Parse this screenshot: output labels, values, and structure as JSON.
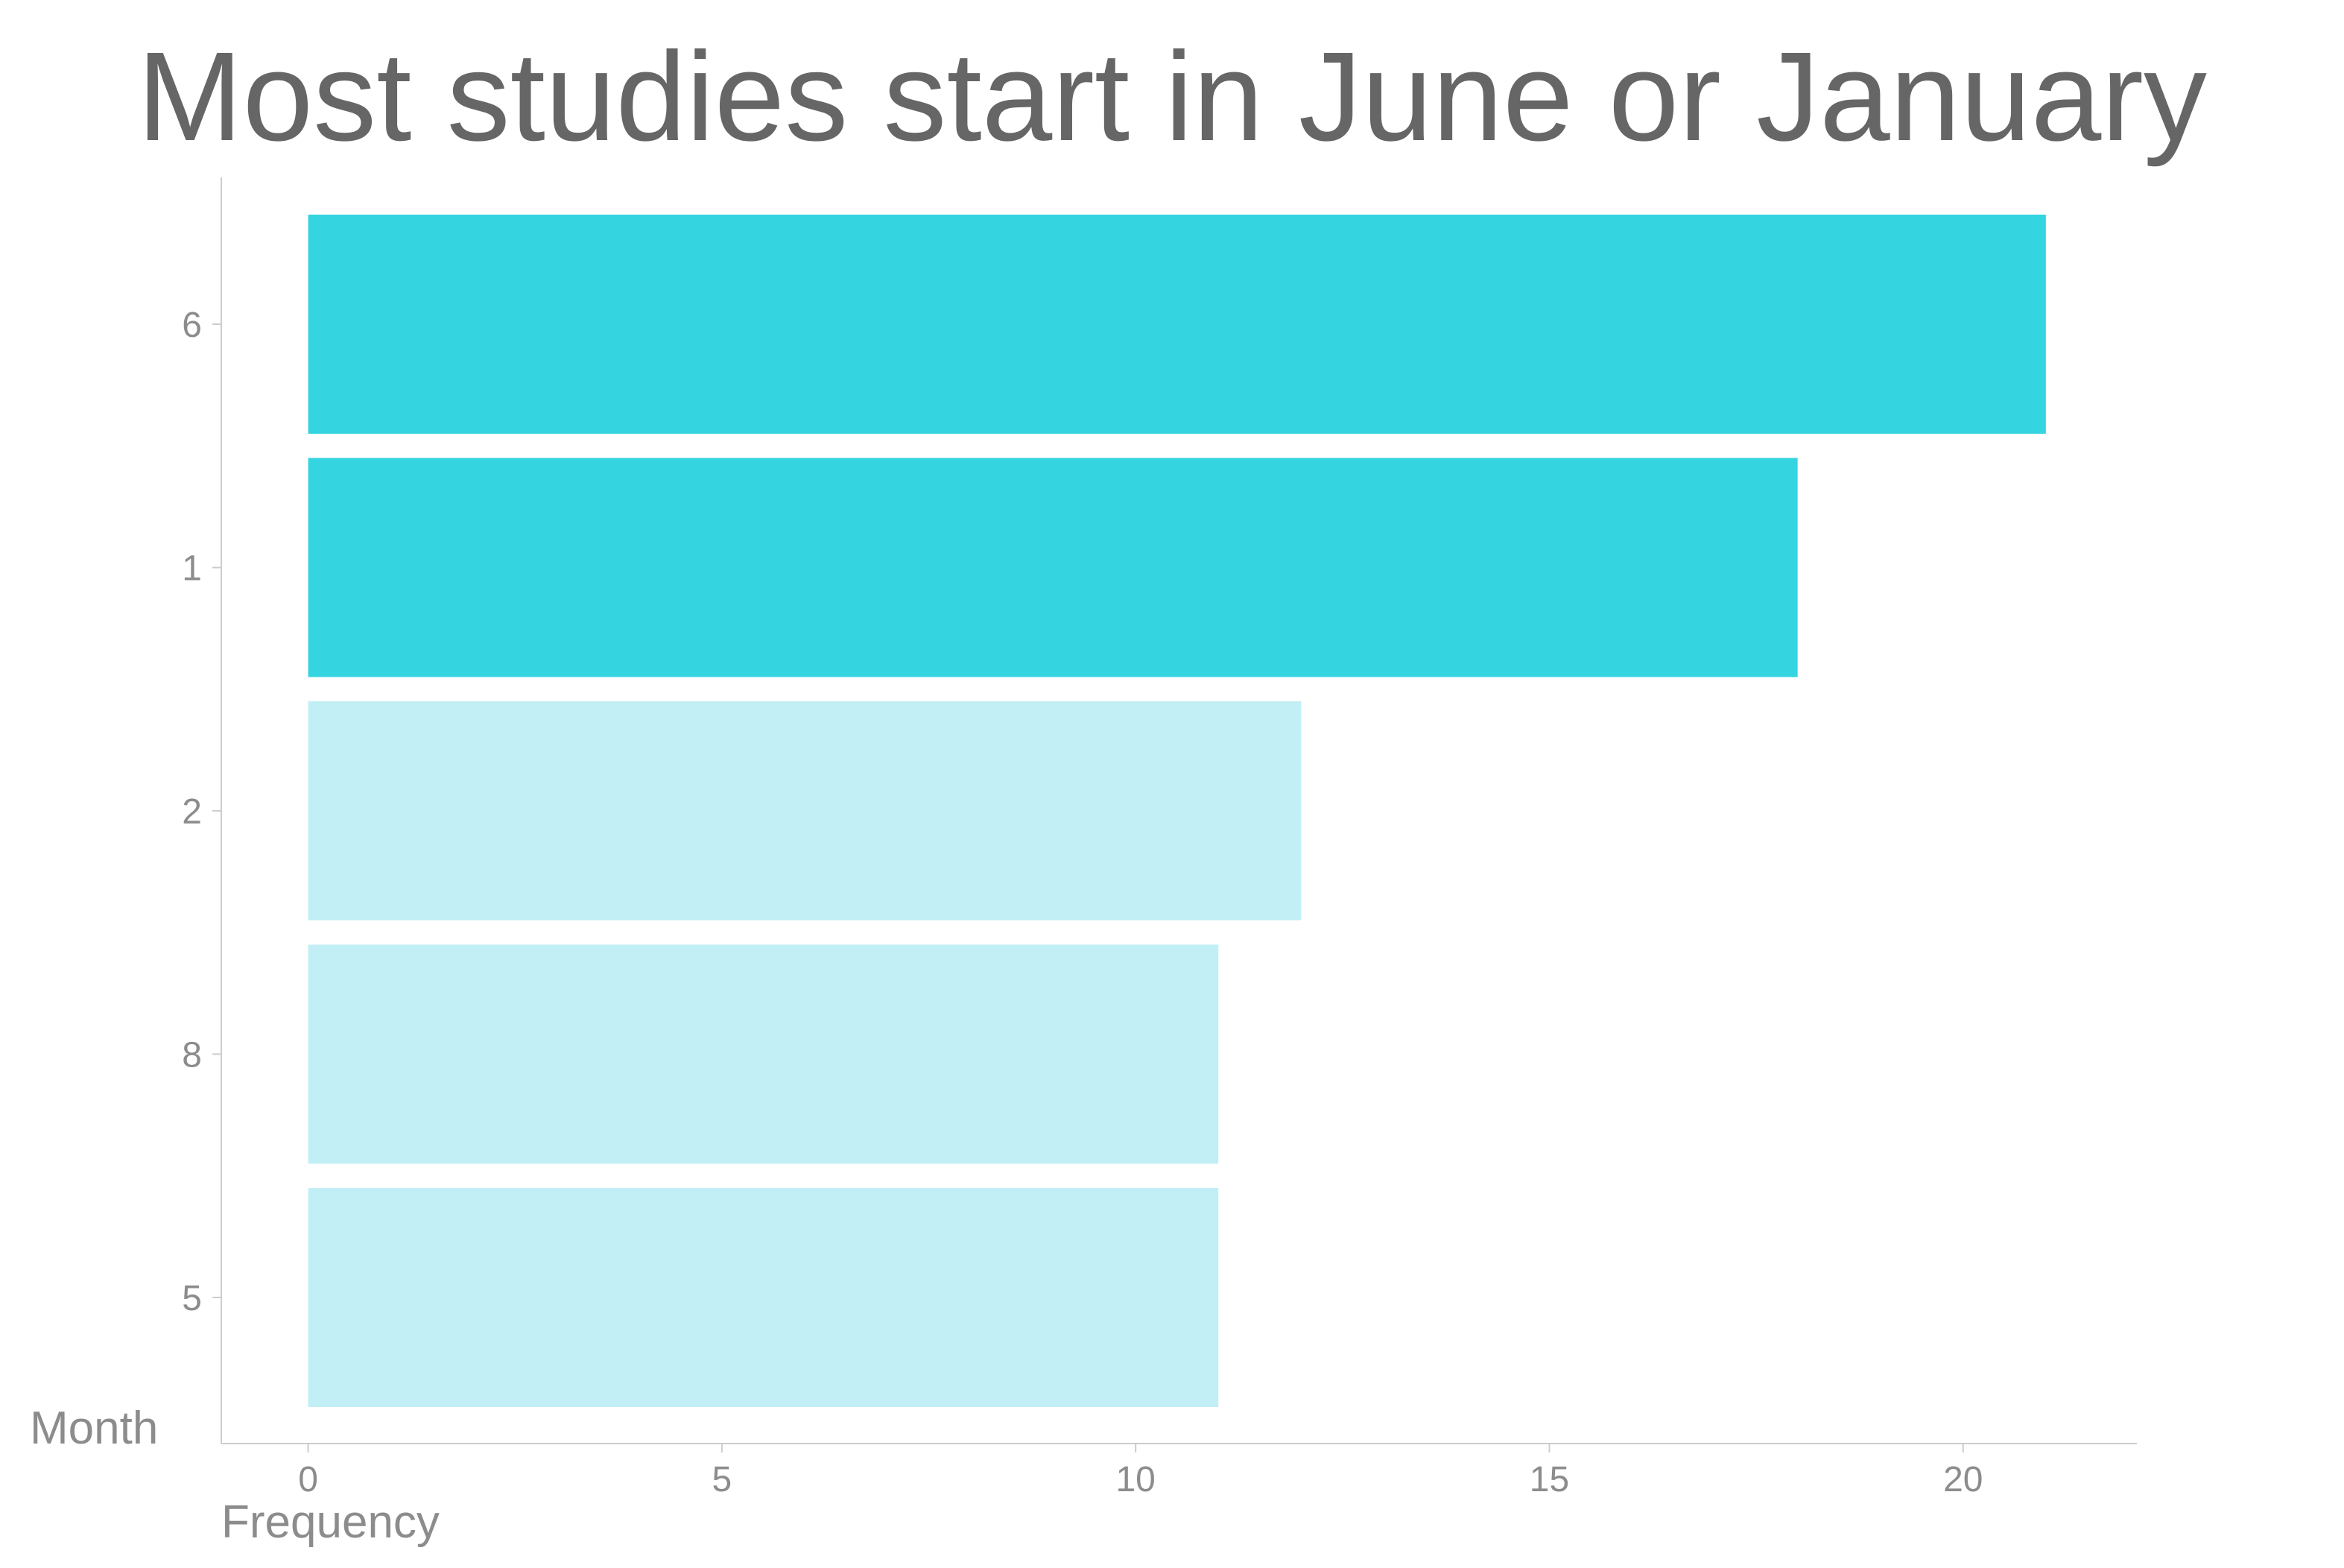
{
  "chart_data": {
    "type": "bar",
    "orientation": "horizontal",
    "title": "Most studies start in June or January",
    "xlabel": "Frequency",
    "ylabel": "Month",
    "categories": [
      "6",
      "1",
      "2",
      "8",
      "5"
    ],
    "values": [
      21,
      18,
      12,
      11,
      11
    ],
    "highlighted": [
      true,
      true,
      false,
      false,
      false
    ],
    "xlim": [
      -1.05,
      22.1
    ],
    "xticks": [
      0,
      5,
      10,
      15,
      20
    ],
    "grid": false,
    "legend": "none",
    "colors": {
      "highlight": "#34d4e0",
      "muted": "#c2eff5",
      "axis": "#cccccc",
      "title": "#666666",
      "label": "#8c8c8c"
    }
  }
}
